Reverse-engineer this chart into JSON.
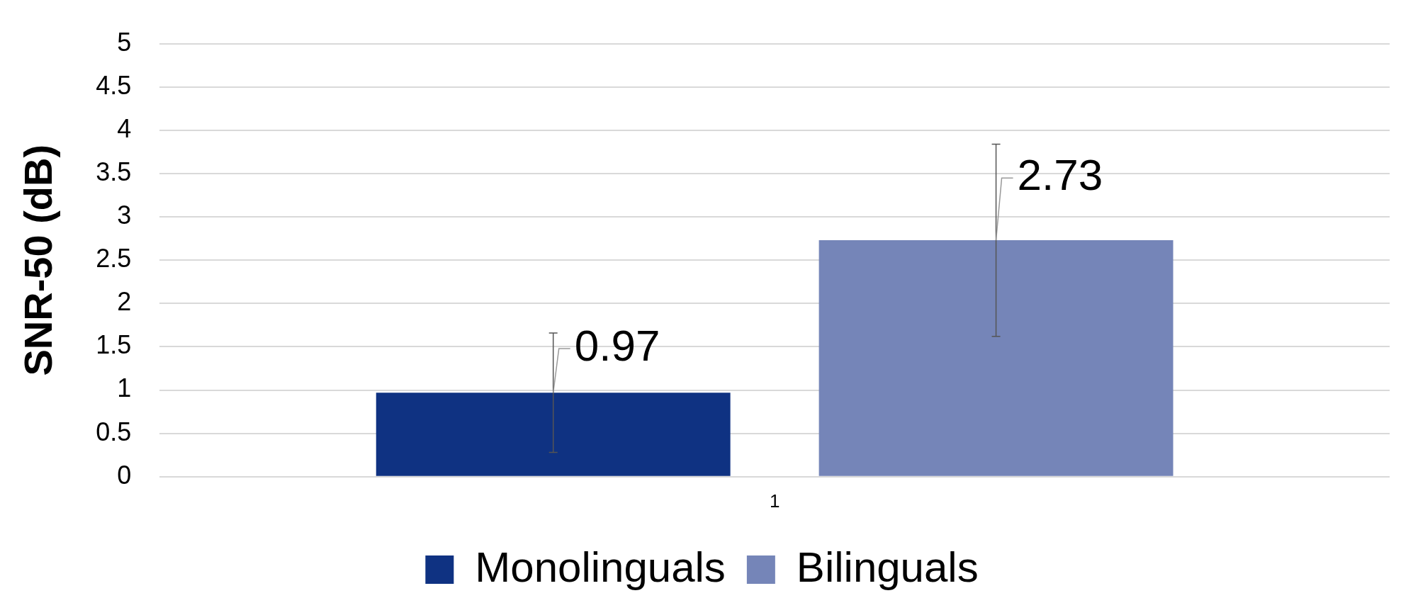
{
  "chart_data": {
    "type": "bar",
    "ylabel": "SNR-50 (dB)",
    "categories": [
      "1"
    ],
    "series": [
      {
        "name": "Monolinguals",
        "color": "#0f3282",
        "values": [
          0.97
        ],
        "errors": [
          0.69
        ]
      },
      {
        "name": "Bilinguals",
        "color": "#7585b8",
        "values": [
          2.73
        ],
        "errors": [
          1.11
        ]
      }
    ],
    "ylim": [
      0,
      5
    ],
    "yticks": [
      0,
      0.5,
      1,
      1.5,
      2,
      2.5,
      3,
      3.5,
      4,
      4.5,
      5
    ],
    "grid": "y",
    "legend": "bottom",
    "data_labels": true
  }
}
